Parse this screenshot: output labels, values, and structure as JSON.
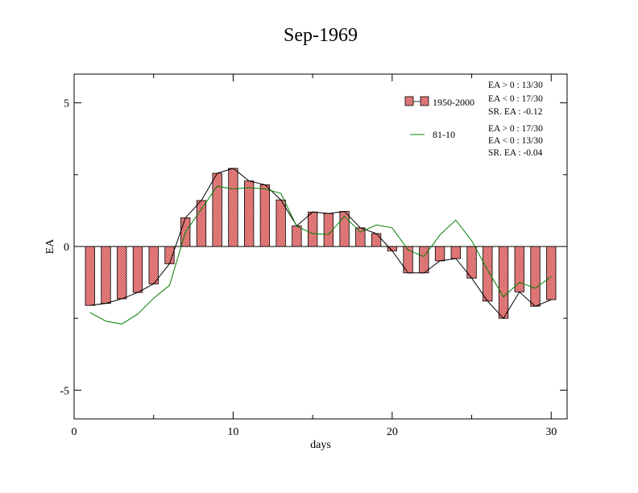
{
  "chart_data": {
    "type": "bar",
    "title": "Sep-1969",
    "xlabel": "days",
    "ylabel": "EA",
    "xlim": [
      0,
      31
    ],
    "ylim": [
      -6,
      6
    ],
    "x_ticks": [
      0,
      10,
      20,
      30
    ],
    "x_tick_labels": [
      "0",
      "10",
      "20",
      "30"
    ],
    "y_ticks": [
      -5,
      0,
      5
    ],
    "y_tick_labels": [
      "-5",
      "0",
      "5"
    ],
    "grid": false,
    "legend_position": "top-right",
    "x": [
      1,
      2,
      3,
      4,
      5,
      6,
      7,
      8,
      9,
      10,
      11,
      12,
      13,
      14,
      15,
      16,
      17,
      18,
      19,
      20,
      21,
      22,
      23,
      24,
      25,
      26,
      27,
      28,
      29,
      30
    ],
    "series": [
      {
        "name": "1950-2000",
        "kind": "bar",
        "color": "#e07070",
        "values": [
          -2.05,
          -1.98,
          -1.82,
          -1.6,
          -1.3,
          -0.6,
          1.0,
          1.6,
          2.55,
          2.72,
          2.28,
          2.15,
          1.62,
          0.72,
          1.2,
          1.15,
          1.22,
          0.65,
          0.45,
          -0.15,
          -0.92,
          -0.92,
          -0.5,
          -0.42,
          -1.1,
          -1.9,
          -2.5,
          -1.58,
          -2.08,
          -1.85
        ]
      },
      {
        "name": "81-10",
        "kind": "line",
        "color": "#008000",
        "values": [
          -2.3,
          -2.6,
          -2.7,
          -2.35,
          -1.8,
          -1.35,
          0.5,
          1.3,
          2.1,
          2.0,
          2.05,
          2.0,
          1.85,
          0.7,
          0.45,
          0.42,
          1.05,
          0.5,
          0.75,
          0.65,
          -0.12,
          -0.35,
          0.4,
          0.92,
          0.2,
          -0.82,
          -1.75,
          -1.25,
          -1.45,
          -1.05
        ]
      }
    ],
    "annotations": {
      "group1": [
        "EA > 0 : 13/30",
        "EA < 0 : 17/30",
        "SR. EA : -0.12"
      ],
      "group2": [
        "EA > 0 : 17/30",
        "EA < 0 : 13/30",
        "SR. EA : -0.04"
      ]
    }
  }
}
